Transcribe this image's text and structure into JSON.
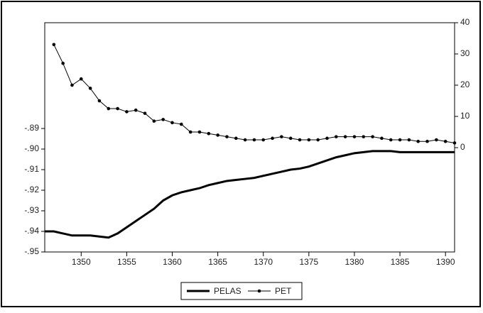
{
  "chart_data": {
    "type": "line",
    "x": [
      1346,
      1347,
      1348,
      1349,
      1350,
      1351,
      1352,
      1353,
      1354,
      1355,
      1356,
      1357,
      1358,
      1359,
      1360,
      1361,
      1362,
      1363,
      1364,
      1365,
      1366,
      1367,
      1368,
      1369,
      1370,
      1371,
      1372,
      1373,
      1374,
      1375,
      1376,
      1377,
      1378,
      1379,
      1380,
      1381,
      1382,
      1383,
      1384,
      1385,
      1386,
      1387,
      1388,
      1389,
      1390,
      1391
    ],
    "series": [
      {
        "name": "PELAS",
        "color": "#000000",
        "axis": "y",
        "values": [
          -0.94,
          -0.94,
          -0.941,
          -0.942,
          -0.942,
          -0.942,
          -0.9425,
          -0.943,
          -0.941,
          -0.938,
          -0.935,
          -0.932,
          -0.929,
          -0.925,
          -0.9225,
          -0.921,
          -0.92,
          -0.919,
          -0.9175,
          -0.9165,
          -0.9155,
          -0.915,
          -0.9145,
          -0.914,
          -0.913,
          -0.912,
          -0.911,
          -0.91,
          -0.9095,
          -0.9085,
          -0.907,
          -0.9055,
          -0.904,
          -0.903,
          -0.902,
          -0.9015,
          -0.901,
          -0.901,
          -0.901,
          -0.9015,
          -0.9015,
          -0.9015,
          -0.9015,
          -0.9015,
          -0.9015,
          -0.9015
        ]
      },
      {
        "name": "PET",
        "color": "#000000",
        "axis": "y2",
        "values": [
          null,
          33,
          27,
          20,
          22,
          19,
          15,
          12.5,
          12.5,
          11.5,
          12,
          11,
          8.5,
          9,
          8,
          7.5,
          5,
          5,
          4.5,
          4,
          3.5,
          3,
          2.5,
          2.5,
          2.5,
          3,
          3.5,
          3,
          2.5,
          2.5,
          2.5,
          3,
          3.5,
          3.5,
          3.5,
          3.5,
          3.5,
          3,
          2.5,
          2.5,
          2.5,
          2,
          2,
          2.5,
          2,
          1.5
        ]
      }
    ],
    "xlim": [
      1346,
      1391
    ],
    "xticks": [
      1350,
      1355,
      1360,
      1365,
      1370,
      1375,
      1380,
      1385,
      1390
    ],
    "ylim": [
      -0.95,
      -0.8386
    ],
    "yticks": [
      {
        "value": -0.95,
        "label": "-.95"
      },
      {
        "value": -0.94,
        "label": "-.94"
      },
      {
        "value": -0.93,
        "label": "-.93"
      },
      {
        "value": -0.92,
        "label": "-.92"
      },
      {
        "value": -0.91,
        "label": "-.91"
      },
      {
        "value": -0.9,
        "label": "-.90"
      },
      {
        "value": -0.89,
        "label": "-.89"
      }
    ],
    "y2lim": [
      -33.4,
      40
    ],
    "y2ticks": [
      0,
      10,
      20,
      30,
      40
    ],
    "legend": "bottom"
  }
}
